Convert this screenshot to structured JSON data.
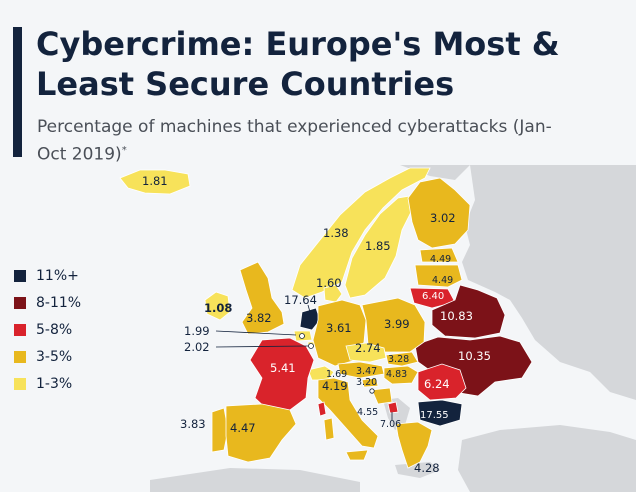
{
  "title": "Cybercrime: Europe's Most & Least Secure Countries",
  "subtitle": "Percentage of machines that experienced cyberattacks (Jan-Oct 2019)",
  "subtitle_note": "*",
  "colors": {
    "navy": "#13233d",
    "darkred": "#7c1218",
    "red": "#d9232b",
    "gold": "#e8b81e",
    "yellow": "#f7e25a",
    "nodata": "#d5d7da",
    "sea": "#f4f6f8"
  },
  "legend": [
    {
      "label": "11%+",
      "color": "#13233d"
    },
    {
      "label": "8-11%",
      "color": "#7c1218"
    },
    {
      "label": "5-8%",
      "color": "#d9232b"
    },
    {
      "label": "3-5%",
      "color": "#e8b81e"
    },
    {
      "label": "1-3%",
      "color": "#f7e25a"
    }
  ],
  "countries": [
    {
      "id": "iceland",
      "value": "1.81",
      "color": "#f7e25a"
    },
    {
      "id": "norway",
      "value": "1.38",
      "color": "#f7e25a"
    },
    {
      "id": "sweden",
      "value": "1.85",
      "color": "#f7e25a"
    },
    {
      "id": "finland",
      "value": "3.02",
      "color": "#e8b81e"
    },
    {
      "id": "estonia",
      "value": "4.49",
      "color": "#e8b81e"
    },
    {
      "id": "latvia",
      "value": "4.49",
      "color": "#e8b81e"
    },
    {
      "id": "lithuania",
      "value": "6.40",
      "color": "#d9232b"
    },
    {
      "id": "belarus",
      "value": "10.83",
      "color": "#7c1218"
    },
    {
      "id": "ukraine",
      "value": "10.35",
      "color": "#7c1218"
    },
    {
      "id": "ireland",
      "value": "1.08",
      "color": "#f7e25a"
    },
    {
      "id": "uk",
      "value": "3.82",
      "color": "#e8b81e"
    },
    {
      "id": "netherlands",
      "value": "17.64",
      "color": "#13233d"
    },
    {
      "id": "denmark",
      "value": "1.60",
      "color": "#f7e25a"
    },
    {
      "id": "belgium",
      "value": "1.99",
      "color": "#f7e25a"
    },
    {
      "id": "luxembourg",
      "value": "2.02",
      "color": "#f7e25a"
    },
    {
      "id": "germany",
      "value": "3.61",
      "color": "#e8b81e"
    },
    {
      "id": "poland",
      "value": "3.99",
      "color": "#e8b81e"
    },
    {
      "id": "czechia",
      "value": "2.74",
      "color": "#f7e25a"
    },
    {
      "id": "slovakia",
      "value": "3.28",
      "color": "#e8b81e"
    },
    {
      "id": "austria",
      "value": "3.47",
      "color": "#e8b81e"
    },
    {
      "id": "hungary",
      "value": "4.83",
      "color": "#e8b81e"
    },
    {
      "id": "slovenia",
      "value": "3.20",
      "color": "#e8b81e"
    },
    {
      "id": "switzerland",
      "value": "1.69",
      "color": "#f7e25a"
    },
    {
      "id": "france",
      "value": "5.41",
      "color": "#d9232b"
    },
    {
      "id": "italy",
      "value": "4.19",
      "color": "#e8b81e"
    },
    {
      "id": "romania",
      "value": "6.24",
      "color": "#d9232b"
    },
    {
      "id": "bulgaria",
      "value": "17.55",
      "color": "#13233d"
    },
    {
      "id": "bosnia",
      "value": "4.55",
      "color": "#e8b81e"
    },
    {
      "id": "montenegro",
      "value": "7.06",
      "color": "#d9232b"
    },
    {
      "id": "portugal",
      "value": "3.83",
      "color": "#e8b81e"
    },
    {
      "id": "spain",
      "value": "4.47",
      "color": "#e8b81e"
    },
    {
      "id": "greece",
      "value": "4.28",
      "color": "#e8b81e"
    }
  ]
}
